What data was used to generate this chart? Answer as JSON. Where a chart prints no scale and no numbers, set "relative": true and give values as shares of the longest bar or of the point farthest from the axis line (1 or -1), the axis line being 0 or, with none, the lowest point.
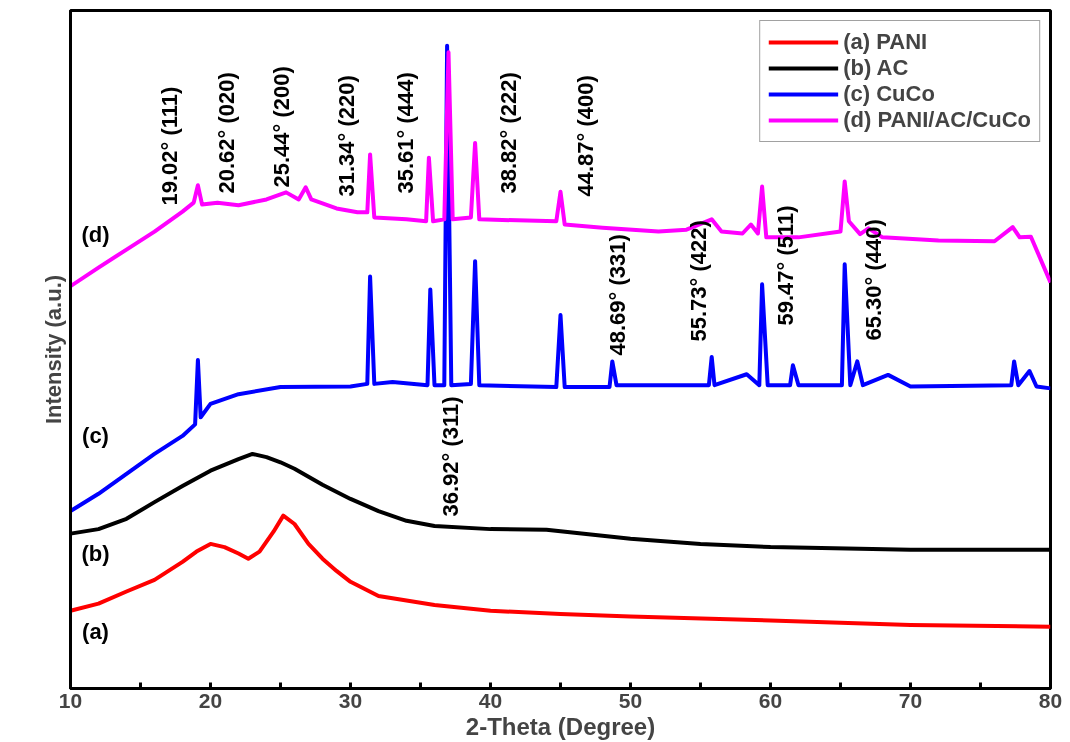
{
  "chart_data": {
    "type": "line",
    "relative": true,
    "xlabel": "2-Theta (Degree)",
    "ylabel": "Intensity (a.u.)",
    "xlim": [
      10,
      80
    ],
    "xticks": [
      10,
      {
        "value": 15,
        "label": null
      },
      20,
      {
        "value": 25,
        "label": null
      },
      30,
      {
        "value": 35,
        "label": null
      },
      40,
      {
        "value": 45,
        "label": null
      },
      50,
      {
        "value": 55,
        "label": null
      },
      60,
      {
        "value": 65,
        "label": null
      },
      70,
      {
        "value": 75,
        "label": null
      },
      80
    ],
    "grid": false,
    "legend": "top right",
    "tick_labels": "x",
    "series": [
      {
        "name": "(a) PANI",
        "color": "#ff0000",
        "x": [
          10,
          12,
          14,
          16,
          18,
          19,
          20,
          21,
          22,
          22.7,
          23.5,
          24.5,
          25.2,
          26,
          27,
          28,
          29,
          30,
          32,
          34,
          36,
          40,
          45,
          50,
          60,
          70,
          80
        ],
        "values": [
          0.121,
          0.132,
          0.151,
          0.169,
          0.197,
          0.213,
          0.225,
          0.22,
          0.21,
          0.202,
          0.213,
          0.244,
          0.269,
          0.256,
          0.225,
          0.202,
          0.183,
          0.166,
          0.144,
          0.137,
          0.13,
          0.121,
          0.116,
          0.112,
          0.106,
          0.099,
          0.096
        ]
      },
      {
        "name": "(b) AC",
        "color": "#000000",
        "x": [
          10,
          12,
          14,
          16,
          18,
          20,
          22,
          23,
          24,
          25,
          26,
          28,
          30,
          32,
          34,
          36,
          40,
          44,
          50,
          55,
          60,
          70,
          80
        ],
        "values": [
          0.241,
          0.248,
          0.264,
          0.29,
          0.315,
          0.339,
          0.357,
          0.365,
          0.36,
          0.352,
          0.342,
          0.317,
          0.295,
          0.276,
          0.261,
          0.253,
          0.248,
          0.247,
          0.233,
          0.225,
          0.22,
          0.216,
          0.216
        ]
      },
      {
        "name": "(c) CuCo",
        "color": "#0000ff",
        "x": [
          10,
          12,
          14,
          16,
          18,
          18.9,
          19.1,
          19.3,
          20,
          22,
          25,
          30,
          31.2,
          31.4,
          31.7,
          33,
          35.5,
          35.7,
          36,
          36.7,
          36.9,
          37.2,
          38.6,
          38.9,
          39.2,
          44.7,
          45.0,
          45.3,
          48.5,
          48.7,
          49,
          54,
          55.6,
          55.8,
          56,
          58.3,
          59.2,
          59.4,
          59.8,
          61.4,
          61.6,
          62,
          65.1,
          65.3,
          65.7,
          66.2,
          66.6,
          68.4,
          70,
          77.2,
          77.4,
          77.7,
          78.5,
          79,
          80
        ],
        "values": [
          0.276,
          0.303,
          0.334,
          0.365,
          0.393,
          0.411,
          0.511,
          0.422,
          0.443,
          0.458,
          0.469,
          0.47,
          0.474,
          0.641,
          0.474,
          0.477,
          0.472,
          0.621,
          0.472,
          0.472,
          1.0,
          0.472,
          0.474,
          0.665,
          0.472,
          0.469,
          0.581,
          0.469,
          0.469,
          0.509,
          0.472,
          0.472,
          0.472,
          0.516,
          0.472,
          0.489,
          0.472,
          0.629,
          0.472,
          0.472,
          0.503,
          0.472,
          0.472,
          0.66,
          0.472,
          0.509,
          0.472,
          0.488,
          0.47,
          0.472,
          0.509,
          0.472,
          0.494,
          0.47,
          0.467
        ]
      },
      {
        "name": "(d) PANI/AC/CuCo",
        "color": "#ff00ff",
        "x": [
          10,
          12,
          14,
          16,
          18,
          18.8,
          19.1,
          19.4,
          20.5,
          22,
          24,
          25.4,
          26.3,
          26.8,
          27.2,
          29,
          30.5,
          31.2,
          31.4,
          31.7,
          34,
          35.4,
          35.6,
          35.9,
          36.7,
          37.0,
          37.3,
          38.6,
          38.9,
          39.2,
          44.7,
          45.0,
          45.3,
          48,
          52,
          54,
          55.8,
          56.5,
          58,
          58.6,
          59.1,
          59.4,
          59.7,
          62,
          65,
          65.3,
          65.6,
          66.4,
          67,
          68,
          72,
          76,
          77.3,
          77.8,
          78.6,
          80
        ],
        "values": [
          0.626,
          0.655,
          0.683,
          0.711,
          0.742,
          0.756,
          0.783,
          0.753,
          0.756,
          0.752,
          0.761,
          0.772,
          0.761,
          0.78,
          0.761,
          0.747,
          0.741,
          0.741,
          0.831,
          0.733,
          0.73,
          0.727,
          0.826,
          0.727,
          0.73,
          0.99,
          0.73,
          0.733,
          0.849,
          0.73,
          0.727,
          0.773,
          0.722,
          0.717,
          0.711,
          0.714,
          0.73,
          0.711,
          0.708,
          0.722,
          0.708,
          0.781,
          0.702,
          0.702,
          0.711,
          0.789,
          0.727,
          0.707,
          0.716,
          0.702,
          0.697,
          0.696,
          0.718,
          0.702,
          0.703,
          0.632
        ]
      }
    ],
    "annotations": [
      "19.02° (111)",
      "20.62° (020)",
      "25.44° (200)",
      "31.34° (220)",
      "35.61° (444)",
      "38.82° (222)",
      "44.87° (400)",
      "48.69° (331)",
      "55.73° (422)",
      "59.47° (511)",
      "65.30° (440)",
      "36.92° (311)",
      "(a)",
      "(b)",
      "(c)",
      "(d)"
    ]
  }
}
